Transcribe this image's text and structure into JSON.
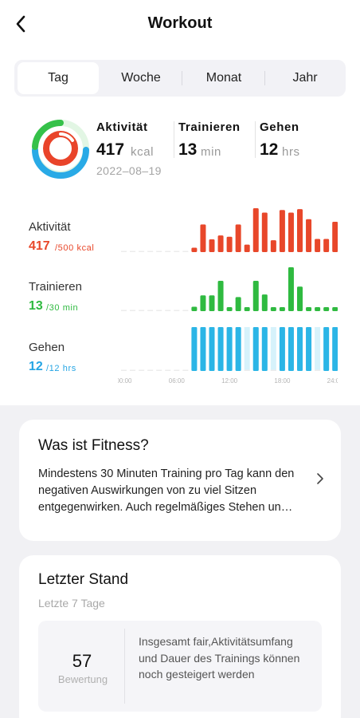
{
  "header": {
    "title": "Workout",
    "back_icon": "chevron-left-icon"
  },
  "tabs": [
    {
      "label": "Tag",
      "active": true
    },
    {
      "label": "Woche",
      "active": false
    },
    {
      "label": "Monat",
      "active": false
    },
    {
      "label": "Jahr",
      "active": false
    }
  ],
  "summary": {
    "date": "2022–08–19",
    "activity": {
      "label": "Aktivität",
      "value": "417",
      "unit": "kcal",
      "color": "#e8472a"
    },
    "training": {
      "label": "Trainieren",
      "value": "13",
      "unit": "min",
      "color": "#2fba40"
    },
    "walking": {
      "label": "Gehen",
      "value": "12",
      "unit": "hrs",
      "color": "#26a5e4"
    }
  },
  "rows": {
    "activity": {
      "label": "Aktivität",
      "value": "417",
      "goal": "/500 kcal",
      "color": "#e8472a"
    },
    "training": {
      "label": "Trainieren",
      "value": "13",
      "goal": "/30 min",
      "color": "#2fba40"
    },
    "walking": {
      "label": "Gehen",
      "value": "12",
      "goal": "/12 hrs",
      "color": "#26a5e4"
    }
  },
  "chart_data": [
    {
      "type": "bar",
      "series_key": "activity",
      "unit": "relative",
      "x_ticks": [
        "00:00",
        "06:00",
        "12:00",
        "18:00",
        "24:00"
      ],
      "values": [
        0,
        0,
        0,
        0,
        0,
        0,
        0,
        0,
        0.1,
        0.63,
        0.29,
        0.38,
        0.35,
        0.63,
        0.17,
        1.0,
        0.9,
        0.27,
        0.96,
        0.9,
        0.98,
        0.75,
        0.3,
        0.3,
        0.69
      ],
      "color": "#e8472a"
    },
    {
      "type": "bar",
      "series_key": "training",
      "unit": "relative",
      "x_ticks": [
        "00:00",
        "06:00",
        "12:00",
        "18:00",
        "24:00"
      ],
      "values": [
        0,
        0,
        0,
        0,
        0,
        0,
        0,
        0,
        0.1,
        0.36,
        0.36,
        0.69,
        0.06,
        0.32,
        0.06,
        0.69,
        0.38,
        0.06,
        0.06,
        1.0,
        0.56,
        0.06,
        0.06,
        0.06,
        0.06
      ],
      "color": "#2fba40"
    },
    {
      "type": "bar",
      "series_key": "walking",
      "unit": "relative",
      "x_ticks": [
        "00:00",
        "06:00",
        "12:00",
        "18:00",
        "24:00"
      ],
      "values": [
        0,
        0,
        0,
        0,
        0,
        0,
        0,
        0,
        1,
        1,
        1,
        1,
        1,
        1,
        0,
        1,
        1,
        0,
        1,
        1,
        1,
        1,
        0,
        1,
        1
      ],
      "background_color": "#d6f2fb",
      "color": "#2bb5e6"
    }
  ],
  "fitness_card": {
    "title": "Was ist Fitness?",
    "text": "Mindestens 30 Minuten Training pro Tag kann den negativen Auswirkungen von zu viel Sitzen entgegenwirken. Auch regelmäßiges Stehen un…",
    "chevron_icon": "chevron-right-icon"
  },
  "status_card": {
    "title": "Letzter Stand",
    "subtitle": "Letzte 7 Tage",
    "score": "57",
    "score_label": "Bewertung",
    "description": "Insgesamt fair,Aktivitätsumfang und Dauer des Trainings können noch gesteigert werden"
  }
}
